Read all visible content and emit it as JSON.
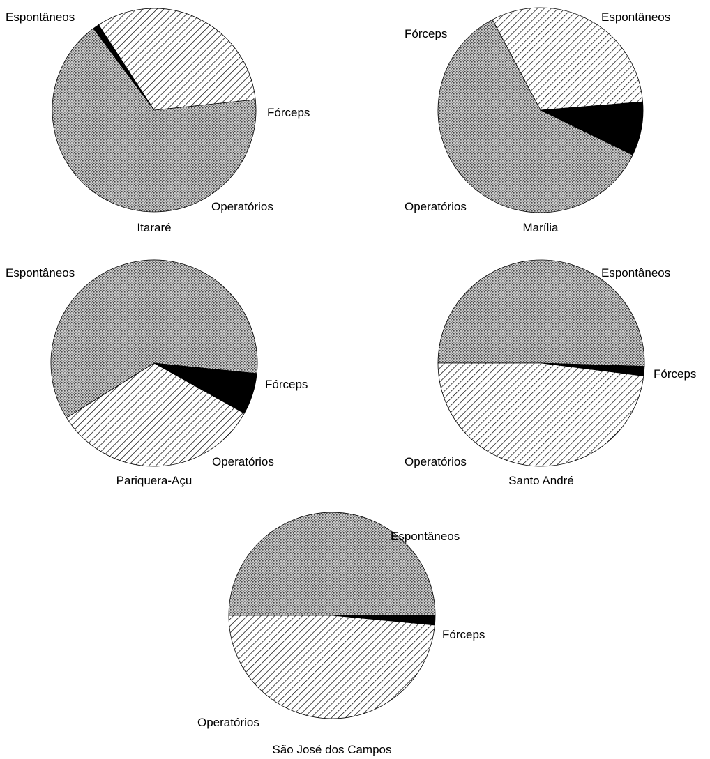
{
  "chart_data": [
    {
      "type": "pie",
      "title": "Itararé",
      "slices": [
        {
          "label": "Espontâneos",
          "value": 66.5,
          "pattern": "dots"
        },
        {
          "label": "Fórceps",
          "value": 1.0,
          "pattern": "solid"
        },
        {
          "label": "Operatórios",
          "value": 32.5,
          "pattern": "hatch"
        }
      ]
    },
    {
      "type": "pie",
      "title": "Marília",
      "slices": [
        {
          "label": "Espontâneos",
          "value": 31.5,
          "pattern": "hatch"
        },
        {
          "label": "Fórceps",
          "value": 8.5,
          "pattern": "solid"
        },
        {
          "label": "Operatórios",
          "value": 60.0,
          "pattern": "dots"
        }
      ]
    },
    {
      "type": "pie",
      "title": "Pariquera-Açu",
      "slices": [
        {
          "label": "Espontâneos",
          "value": 60.5,
          "pattern": "dots"
        },
        {
          "label": "Fórceps",
          "value": 6.5,
          "pattern": "solid"
        },
        {
          "label": "Operatórios",
          "value": 33.0,
          "pattern": "hatch"
        }
      ]
    },
    {
      "type": "pie",
      "title": "Santo André",
      "slices": [
        {
          "label": "Espontâneos",
          "value": 50.5,
          "pattern": "dots"
        },
        {
          "label": "Fórceps",
          "value": 1.5,
          "pattern": "solid"
        },
        {
          "label": "Operatórios",
          "value": 48.0,
          "pattern": "hatch"
        }
      ]
    },
    {
      "type": "pie",
      "title": "São José dos Campos",
      "slices": [
        {
          "label": "Espontâneos",
          "value": 50.0,
          "pattern": "dots"
        },
        {
          "label": "Fórceps",
          "value": 1.5,
          "pattern": "solid"
        },
        {
          "label": "Operatórios",
          "value": 48.5,
          "pattern": "hatch"
        }
      ]
    }
  ]
}
